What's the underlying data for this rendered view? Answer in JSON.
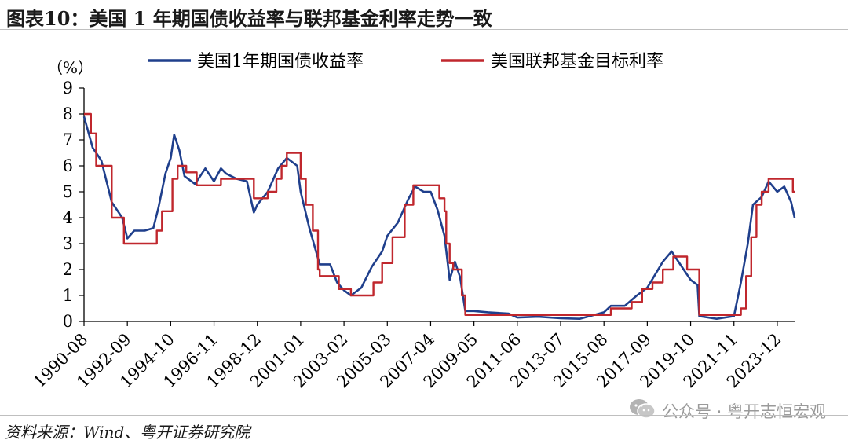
{
  "title": "图表10：美国 1 年期国债收益率与联邦基金利率走势一致",
  "source": "资料来源：Wind、粤开证券研究院",
  "watermark": "公众号 · 粤开志恒宏观",
  "colors": {
    "yield": "#1f3f8c",
    "fed": "#c0272d"
  },
  "chart_data": {
    "type": "line",
    "ylabel": "（%）",
    "ylim": [
      0,
      9
    ],
    "yticks": [
      0,
      1,
      2,
      3,
      4,
      5,
      6,
      7,
      8,
      9
    ],
    "x_tick_labels": [
      "1990-08",
      "1992-09",
      "1994-10",
      "1996-11",
      "1998-12",
      "2001-01",
      "2003-02",
      "2005-03",
      "2007-04",
      "2009-05",
      "2011-06",
      "2013-07",
      "2015-08",
      "2017-09",
      "2019-10",
      "2021-11",
      "2023-12"
    ],
    "xlim": [
      "1990-08",
      "2024-10"
    ],
    "legend_position": "top",
    "grid": false,
    "series": [
      {
        "name": "美国1年期国债收益率",
        "color": "#1f3f8c",
        "data": [
          [
            "1990-08",
            7.9
          ],
          [
            "1991-01",
            6.7
          ],
          [
            "1991-06",
            6.2
          ],
          [
            "1991-12",
            4.6
          ],
          [
            "1992-06",
            4.0
          ],
          [
            "1992-09",
            3.2
          ],
          [
            "1993-01",
            3.5
          ],
          [
            "1993-07",
            3.5
          ],
          [
            "1993-12",
            3.6
          ],
          [
            "1994-03",
            4.4
          ],
          [
            "1994-07",
            5.7
          ],
          [
            "1994-10",
            6.3
          ],
          [
            "1994-12",
            7.2
          ],
          [
            "1995-03",
            6.6
          ],
          [
            "1995-06",
            5.6
          ],
          [
            "1995-12",
            5.3
          ],
          [
            "1996-03",
            5.6
          ],
          [
            "1996-06",
            5.9
          ],
          [
            "1996-11",
            5.4
          ],
          [
            "1997-03",
            5.9
          ],
          [
            "1997-06",
            5.7
          ],
          [
            "1997-12",
            5.5
          ],
          [
            "1998-06",
            5.4
          ],
          [
            "1998-10",
            4.2
          ],
          [
            "1998-12",
            4.5
          ],
          [
            "1999-06",
            5.0
          ],
          [
            "1999-12",
            5.9
          ],
          [
            "2000-05",
            6.3
          ],
          [
            "2000-11",
            6.0
          ],
          [
            "2001-01",
            5.0
          ],
          [
            "2001-06",
            3.6
          ],
          [
            "2001-12",
            2.2
          ],
          [
            "2002-06",
            2.2
          ],
          [
            "2002-10",
            1.5
          ],
          [
            "2003-02",
            1.2
          ],
          [
            "2003-06",
            1.0
          ],
          [
            "2003-12",
            1.3
          ],
          [
            "2004-06",
            2.1
          ],
          [
            "2004-12",
            2.7
          ],
          [
            "2005-03",
            3.3
          ],
          [
            "2005-09",
            3.8
          ],
          [
            "2006-03",
            4.7
          ],
          [
            "2006-07",
            5.2
          ],
          [
            "2006-12",
            5.0
          ],
          [
            "2007-04",
            5.0
          ],
          [
            "2007-08",
            4.3
          ],
          [
            "2007-12",
            3.3
          ],
          [
            "2008-03",
            1.6
          ],
          [
            "2008-06",
            2.3
          ],
          [
            "2008-09",
            1.7
          ],
          [
            "2008-12",
            0.4
          ],
          [
            "2009-05",
            0.4
          ],
          [
            "2010-01",
            0.35
          ],
          [
            "2011-01",
            0.3
          ],
          [
            "2011-06",
            0.15
          ],
          [
            "2012-06",
            0.18
          ],
          [
            "2013-07",
            0.12
          ],
          [
            "2014-06",
            0.1
          ],
          [
            "2015-08",
            0.35
          ],
          [
            "2015-12",
            0.6
          ],
          [
            "2016-08",
            0.6
          ],
          [
            "2017-03",
            1.0
          ],
          [
            "2017-09",
            1.3
          ],
          [
            "2018-06",
            2.3
          ],
          [
            "2018-11",
            2.7
          ],
          [
            "2019-06",
            2.0
          ],
          [
            "2019-10",
            1.6
          ],
          [
            "2020-02",
            1.4
          ],
          [
            "2020-03",
            0.2
          ],
          [
            "2021-01",
            0.1
          ],
          [
            "2021-11",
            0.2
          ],
          [
            "2022-03",
            1.5
          ],
          [
            "2022-07",
            3.0
          ],
          [
            "2022-10",
            4.5
          ],
          [
            "2023-03",
            4.8
          ],
          [
            "2023-07",
            5.4
          ],
          [
            "2023-12",
            5.0
          ],
          [
            "2024-04",
            5.2
          ],
          [
            "2024-08",
            4.6
          ],
          [
            "2024-10",
            4.0
          ]
        ]
      },
      {
        "name": "美国联邦基金目标利率",
        "color": "#c0272d",
        "steps": [
          [
            "1990-08",
            8.0
          ],
          [
            "1990-12",
            7.25
          ],
          [
            "1991-03",
            6.0
          ],
          [
            "1991-12",
            4.0
          ],
          [
            "1992-07",
            3.0
          ],
          [
            "1994-02",
            3.5
          ],
          [
            "1994-05",
            4.25
          ],
          [
            "1994-11",
            5.5
          ],
          [
            "1995-02",
            6.0
          ],
          [
            "1995-07",
            5.75
          ],
          [
            "1996-01",
            5.25
          ],
          [
            "1997-03",
            5.5
          ],
          [
            "1998-10",
            4.75
          ],
          [
            "1999-06",
            5.0
          ],
          [
            "1999-11",
            5.5
          ],
          [
            "2000-02",
            6.0
          ],
          [
            "2000-05",
            6.5
          ],
          [
            "2001-01",
            5.5
          ],
          [
            "2001-04",
            4.5
          ],
          [
            "2001-08",
            3.5
          ],
          [
            "2001-11",
            2.0
          ],
          [
            "2001-12",
            1.75
          ],
          [
            "2002-11",
            1.25
          ],
          [
            "2003-06",
            1.0
          ],
          [
            "2004-07",
            1.5
          ],
          [
            "2004-12",
            2.25
          ],
          [
            "2005-06",
            3.25
          ],
          [
            "2006-01",
            4.5
          ],
          [
            "2006-06",
            5.25
          ],
          [
            "2007-09",
            4.75
          ],
          [
            "2007-12",
            4.25
          ],
          [
            "2008-01",
            3.0
          ],
          [
            "2008-03",
            2.25
          ],
          [
            "2008-05",
            2.0
          ],
          [
            "2008-10",
            1.0
          ],
          [
            "2008-12",
            0.25
          ],
          [
            "2015-12",
            0.5
          ],
          [
            "2016-12",
            0.75
          ],
          [
            "2017-06",
            1.25
          ],
          [
            "2017-12",
            1.5
          ],
          [
            "2018-06",
            2.0
          ],
          [
            "2018-12",
            2.5
          ],
          [
            "2019-08",
            2.0
          ],
          [
            "2020-03",
            0.25
          ],
          [
            "2022-03",
            0.5
          ],
          [
            "2022-06",
            1.75
          ],
          [
            "2022-09",
            3.25
          ],
          [
            "2022-12",
            4.5
          ],
          [
            "2023-03",
            5.0
          ],
          [
            "2023-07",
            5.5
          ],
          [
            "2024-09",
            5.0
          ],
          [
            "2024-10",
            5.0
          ]
        ]
      }
    ]
  }
}
